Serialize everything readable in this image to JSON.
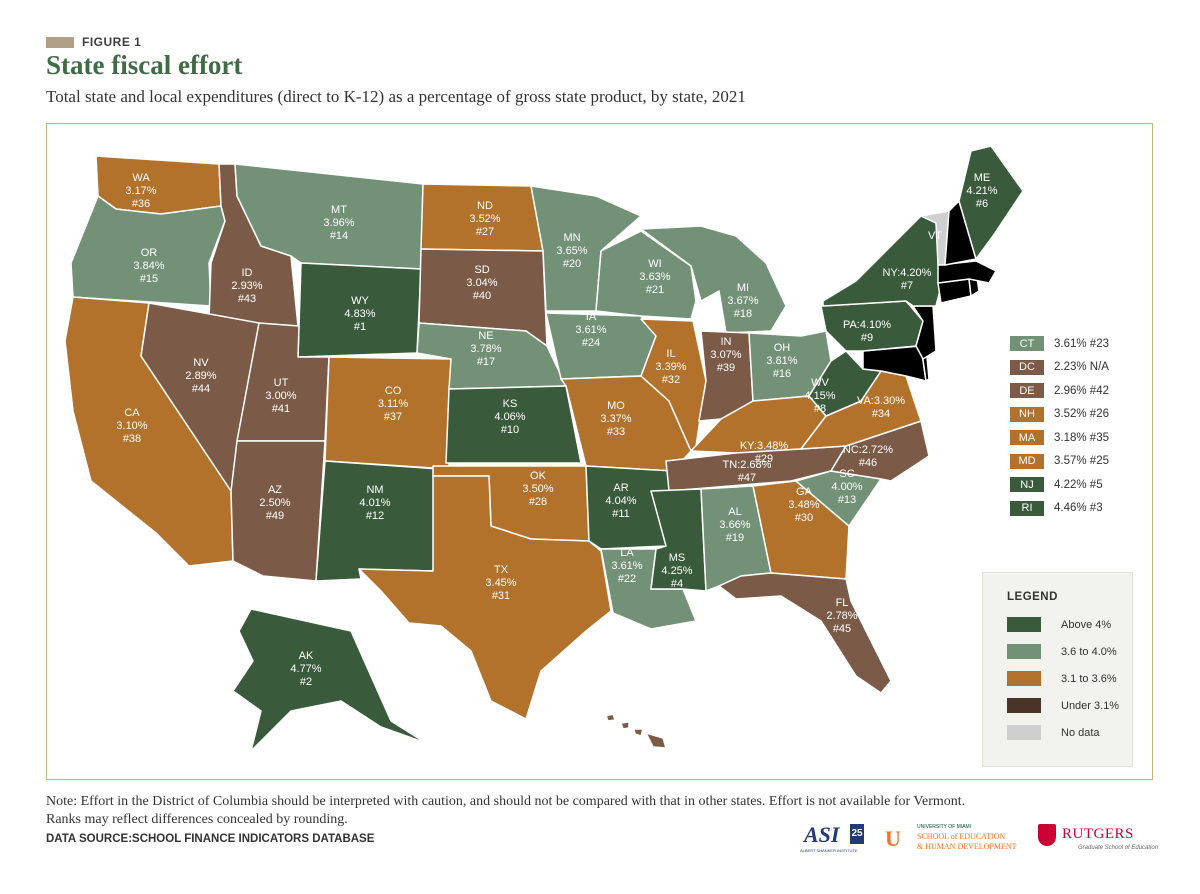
{
  "figure_label": "FIGURE 1",
  "title": "State fiscal effort",
  "subtitle": "Total state and local expenditures (direct to K-12) as a percentage of gross state product, by state, 2021",
  "colors": {
    "above4": "#3a5a3c",
    "from36to40": "#739177",
    "from31to36": "#b2722b",
    "under31": "#7b5b47",
    "no_data": "#cfcfcf",
    "under31_legend": "#4a3328"
  },
  "states": {
    "WA": {
      "pct": "3.17%",
      "rank": "#36",
      "cat": "from31to36"
    },
    "OR": {
      "pct": "3.84%",
      "rank": "#15",
      "cat": "from36to40"
    },
    "CA": {
      "pct": "3.10%",
      "rank": "#38",
      "cat": "from31to36"
    },
    "ID": {
      "pct": "2.93%",
      "rank": "#43",
      "cat": "under31"
    },
    "NV": {
      "pct": "2.89%",
      "rank": "#44",
      "cat": "under31"
    },
    "MT": {
      "pct": "3.96%",
      "rank": "#14",
      "cat": "from36to40"
    },
    "WY": {
      "pct": "4.83%",
      "rank": "#1",
      "cat": "above4"
    },
    "UT": {
      "pct": "3.00%",
      "rank": "#41",
      "cat": "under31"
    },
    "AZ": {
      "pct": "2.50%",
      "rank": "#49",
      "cat": "under31"
    },
    "CO": {
      "pct": "3.11%",
      "rank": "#37",
      "cat": "from31to36"
    },
    "NM": {
      "pct": "4.01%",
      "rank": "#12",
      "cat": "above4"
    },
    "ND": {
      "pct": "3.52%",
      "rank": "#27",
      "cat": "from31to36"
    },
    "SD": {
      "pct": "3.04%",
      "rank": "#40",
      "cat": "under31"
    },
    "NE": {
      "pct": "3.78%",
      "rank": "#17",
      "cat": "from36to40"
    },
    "KS": {
      "pct": "4.06%",
      "rank": "#10",
      "cat": "above4"
    },
    "OK": {
      "pct": "3.50%",
      "rank": "#28",
      "cat": "from31to36"
    },
    "TX": {
      "pct": "3.45%",
      "rank": "#31",
      "cat": "from31to36"
    },
    "MN": {
      "pct": "3.65%",
      "rank": "#20",
      "cat": "from36to40"
    },
    "IA": {
      "pct": "3.61%",
      "rank": "#24",
      "cat": "from36to40"
    },
    "MO": {
      "pct": "3.37%",
      "rank": "#33",
      "cat": "from31to36"
    },
    "AR": {
      "pct": "4.04%",
      "rank": "#11",
      "cat": "above4"
    },
    "LA": {
      "pct": "3.61%",
      "rank": "#22",
      "cat": "from36to40"
    },
    "WI": {
      "pct": "3.63%",
      "rank": "#21",
      "cat": "from36to40"
    },
    "IL": {
      "pct": "3.39%",
      "rank": "#32",
      "cat": "from31to36"
    },
    "MI": {
      "pct": "3.67%",
      "rank": "#18",
      "cat": "from36to40"
    },
    "IN": {
      "pct": "3.07%",
      "rank": "#39",
      "cat": "under31"
    },
    "OH": {
      "pct": "3.81%",
      "rank": "#16",
      "cat": "from36to40"
    },
    "KY": {
      "pct": "3.48%",
      "rank": "#29",
      "cat": "from31to36"
    },
    "TN": {
      "pct": "2.68%",
      "rank": "#47",
      "cat": "under31"
    },
    "MS": {
      "pct": "4.25%",
      "rank": "#4",
      "cat": "above4"
    },
    "AL": {
      "pct": "3.66%",
      "rank": "#19",
      "cat": "from36to40"
    },
    "GA": {
      "pct": "3.48%",
      "rank": "#30",
      "cat": "from31to36"
    },
    "FL": {
      "pct": "2.78%",
      "rank": "#45",
      "cat": "under31"
    },
    "SC": {
      "pct": "4.00%",
      "rank": "#13",
      "cat": "from36to40"
    },
    "NC": {
      "pct": "2.72%",
      "rank": "#46",
      "cat": "under31"
    },
    "VA": {
      "pct": "3.30%",
      "rank": "#34",
      "cat": "from31to36"
    },
    "WV": {
      "pct": "4.15%",
      "rank": "#8",
      "cat": "above4"
    },
    "PA": {
      "pct": "4.10%",
      "rank": "#9",
      "cat": "above4"
    },
    "NY": {
      "pct": "4.20%",
      "rank": "#7",
      "cat": "above4"
    },
    "ME": {
      "pct": "4.21%",
      "rank": "#6",
      "cat": "above4"
    },
    "VT": {
      "pct": "",
      "rank": "",
      "cat": "no_data"
    },
    "AK": {
      "pct": "4.77%",
      "rank": "#2",
      "cat": "above4"
    },
    "HI": {
      "pct": "",
      "rank": "",
      "cat": "under31"
    }
  },
  "small_states": [
    {
      "code": "CT",
      "value": "3.61% #23",
      "cat": "from36to40"
    },
    {
      "code": "DC",
      "value": "2.23% N/A",
      "cat": "under31"
    },
    {
      "code": "DE",
      "value": "2.96% #42",
      "cat": "under31"
    },
    {
      "code": "NH",
      "value": "3.52% #26",
      "cat": "from31to36"
    },
    {
      "code": "MA",
      "value": "3.18% #35",
      "cat": "from31to36"
    },
    {
      "code": "MD",
      "value": "3.57% #25",
      "cat": "from31to36"
    },
    {
      "code": "NJ",
      "value": "4.22% #5",
      "cat": "above4"
    },
    {
      "code": "RI",
      "value": "4.46% #3",
      "cat": "above4"
    }
  ],
  "legend": {
    "title": "LEGEND",
    "items": [
      {
        "label": "Above 4%",
        "cat": "above4"
      },
      {
        "label": "3.6 to 4.0%",
        "cat": "from36to40"
      },
      {
        "label": "3.1 to 3.6%",
        "cat": "from31to36"
      },
      {
        "label": "Under 3.1%",
        "cat": "under31_legend"
      },
      {
        "label": "No data",
        "cat": "no_data"
      }
    ]
  },
  "note_line1": "Note: Effort in the District of Columbia should be interpreted with caution, and should not be compared with that in other states. Effort is not available for Vermont.",
  "note_line2": "Ranks may reflect differences concealed by rounding.",
  "source": "DATA SOURCE:SCHOOL FINANCE INDICATORS DATABASE",
  "logos": {
    "asi": "ASI",
    "asi_num": "25",
    "asi_sub": "ALBERT SHANKER INSTITUTE",
    "um_top": "UNIVERSITY OF MIAMI",
    "um_line1": "SCHOOL of EDUCATION",
    "um_line2": "& HUMAN DEVELOPMENT",
    "rutgers": "RUTGERS",
    "rutgers_sub": "Graduate School of Education"
  }
}
